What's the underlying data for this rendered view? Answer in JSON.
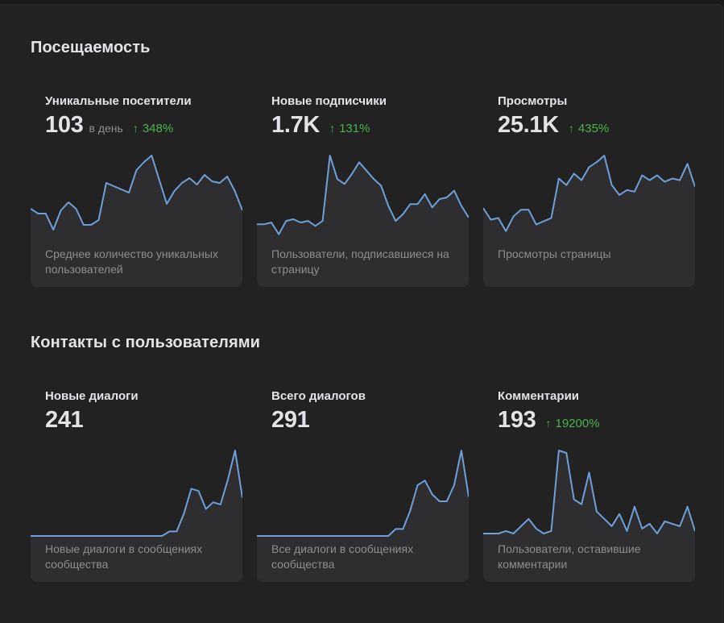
{
  "colors": {
    "line": "#6f9fd8",
    "positive": "#4bb34b"
  },
  "sections": [
    {
      "title": "Посещаемость",
      "cards": [
        {
          "title": "Уникальные посетители",
          "value": "103",
          "unit": "в день",
          "delta": "348%",
          "delta_icon": "arrow-up-icon",
          "caption": "Среднее количество уникальных пользователей",
          "chart_data": {
            "type": "area",
            "values": [
              20,
              17,
              17,
              7,
              19,
              24,
              20,
              10,
              10,
              13,
              36,
              34,
              32,
              30,
              44,
              49,
              53,
              38,
              23,
              31,
              36,
              39,
              35,
              41,
              37,
              36,
              40,
              31,
              19
            ]
          }
        },
        {
          "title": "Новые подписчики",
          "value": "1.7K",
          "unit": "",
          "delta": "131%",
          "delta_icon": "arrow-up-icon",
          "caption": "Пользователи, подписавшиеся на страницу",
          "chart_data": {
            "type": "area",
            "values": [
              10,
              10,
              11,
              4,
              12,
              13,
              11,
              12,
              9,
              12,
              51,
              37,
              34,
              40,
              47,
              42,
              37,
              33,
              21,
              12,
              16,
              22,
              22,
              28,
              20,
              25,
              26,
              30,
              21,
              14
            ]
          }
        },
        {
          "title": "Просмотры",
          "value": "25.1K",
          "unit": "",
          "delta": "435%",
          "delta_icon": "arrow-up-icon",
          "caption": "Просмотры страницы",
          "chart_data": {
            "type": "area",
            "values": [
              20,
              13,
              14,
              6,
              15,
              19,
              19,
              10,
              12,
              14,
              38,
              34,
              41,
              37,
              45,
              48,
              52,
              34,
              28,
              31,
              30,
              40,
              37,
              40,
              36,
              38,
              37,
              47,
              33
            ]
          }
        }
      ]
    },
    {
      "title": "Контакты с пользователями",
      "cards": [
        {
          "title": "Новые диалоги",
          "value": "241",
          "unit": "",
          "delta": "",
          "delta_icon": "",
          "caption": "Новые диалоги в сообщениях сообщества",
          "chart_data": {
            "type": "area",
            "values": [
              0,
              0,
              0,
              0,
              0,
              0,
              0,
              0,
              0,
              0,
              0,
              0,
              0,
              0,
              0,
              0,
              0,
              0,
              0,
              2,
              2,
              10,
              21,
              20,
              12,
              15,
              14,
              25,
              38,
              17
            ]
          }
        },
        {
          "title": "Всего диалогов",
          "value": "291",
          "unit": "",
          "delta": "",
          "delta_icon": "",
          "caption": "Все диалоги в сообщениях сообщества",
          "chart_data": {
            "type": "area",
            "values": [
              0,
              0,
              0,
              0,
              0,
              0,
              0,
              0,
              0,
              0,
              0,
              0,
              0,
              0,
              0,
              0,
              0,
              0,
              0,
              3,
              3,
              11,
              22,
              24,
              18,
              15,
              15,
              22,
              37,
              17
            ]
          }
        },
        {
          "title": "Комментарии",
          "value": "193",
          "unit": "",
          "delta": "19200%",
          "delta_icon": "arrow-up-icon",
          "caption": "Пользователи, оставившие комментарии",
          "chart_data": {
            "type": "area",
            "values": [
              1,
              1,
              1,
              2,
              1,
              4,
              7,
              3,
              1,
              2,
              35,
              34,
              15,
              13,
              26,
              10,
              7,
              4,
              9,
              2,
              12,
              3,
              5,
              1,
              6,
              5,
              4,
              12,
              2
            ]
          }
        }
      ]
    }
  ]
}
